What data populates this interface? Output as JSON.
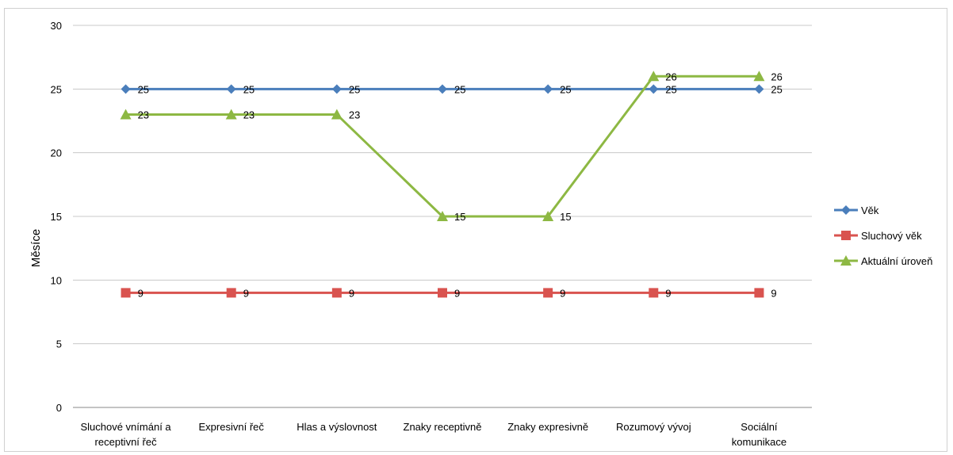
{
  "chart_data": {
    "type": "line",
    "title": "",
    "xlabel": "",
    "ylabel": "Měsíce",
    "ylim": [
      0,
      30
    ],
    "yticks": [
      0,
      5,
      10,
      15,
      20,
      25,
      30
    ],
    "grid": true,
    "legend_position": "right",
    "categories": [
      [
        "Sluchové vnímání a",
        "receptivní řeč"
      ],
      [
        "Expresivní řeč"
      ],
      [
        "Hlas a výslovnost"
      ],
      [
        "Znaky receptivně"
      ],
      [
        "Znaky expresivně"
      ],
      [
        "Rozumový vývoj"
      ],
      [
        "Sociální",
        "komunikace"
      ]
    ],
    "series": [
      {
        "name": "Věk",
        "color": "#4a7ebb",
        "marker": "diamond",
        "values": [
          25,
          25,
          25,
          25,
          25,
          25,
          25
        ]
      },
      {
        "name": "Sluchový věk",
        "color": "#d9534f",
        "marker": "square",
        "values": [
          9,
          9,
          9,
          9,
          9,
          9,
          9
        ]
      },
      {
        "name": "Aktuální úroveň",
        "color": "#8db843",
        "marker": "triangle",
        "values": [
          23,
          23,
          23,
          15,
          15,
          26,
          26
        ]
      }
    ]
  }
}
